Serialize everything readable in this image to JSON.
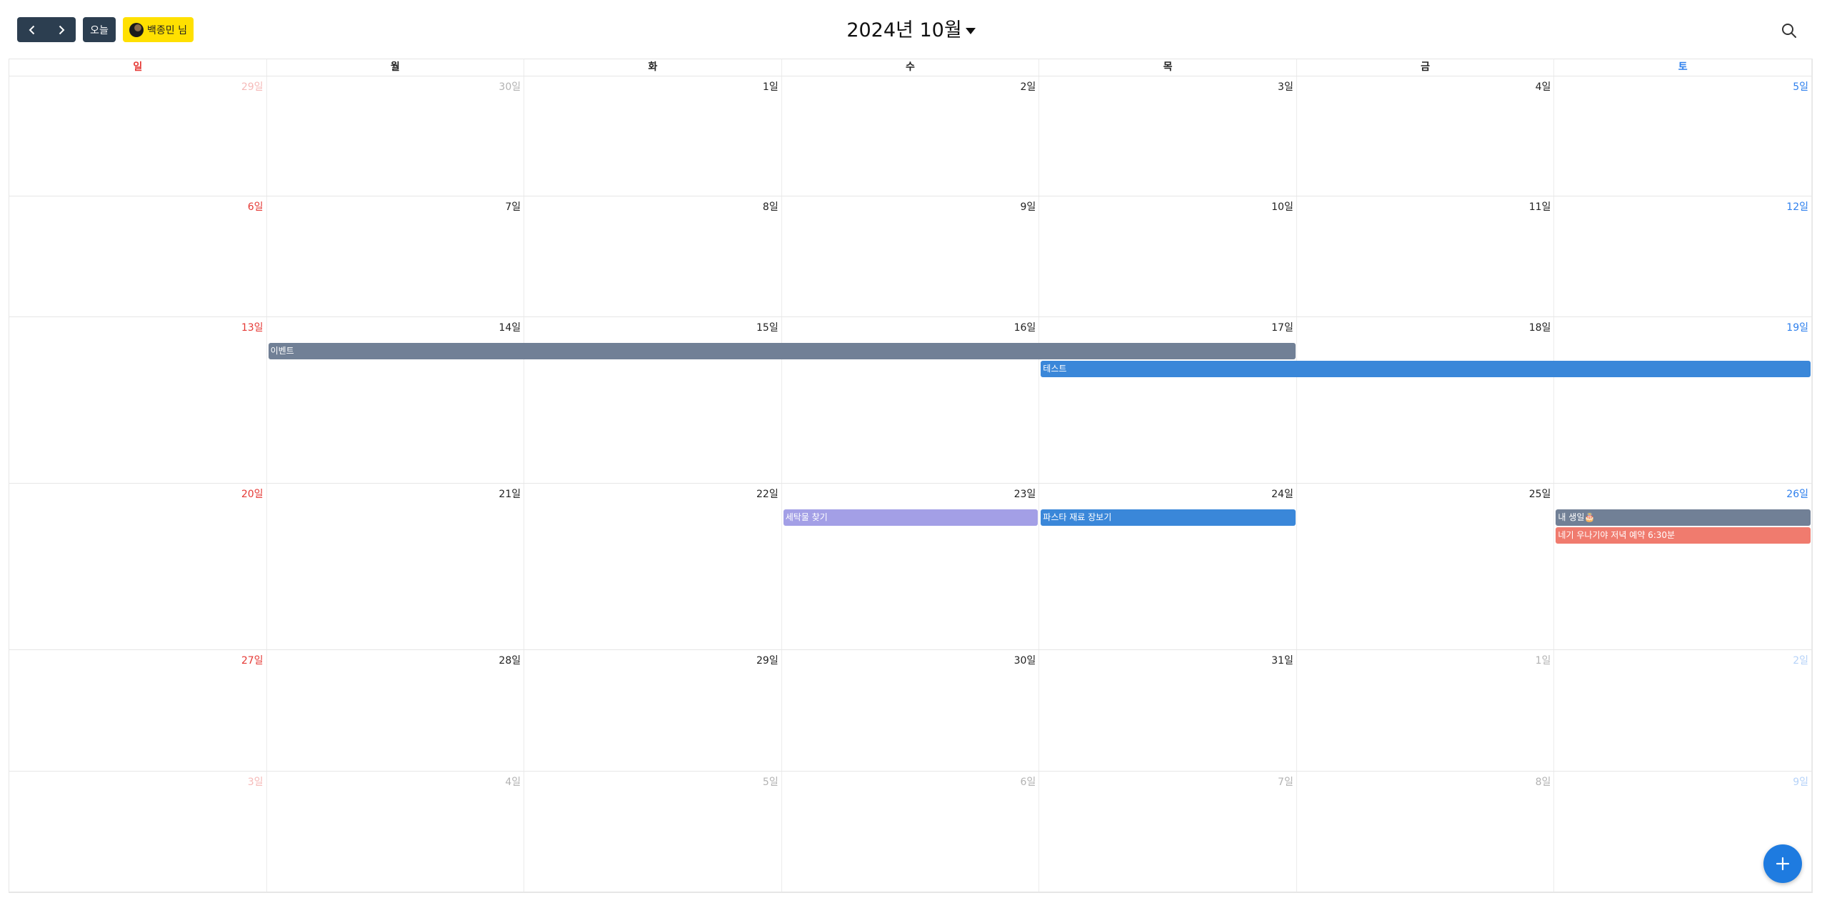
{
  "toolbar": {
    "today_label": "오늘",
    "user_label": "백종민 님",
    "month_title": "2024년 10월",
    "prev_icon": "chevron-left-icon",
    "next_icon": "chevron-right-icon",
    "search_icon": "search-icon"
  },
  "colors": {
    "sunday": "#e53935",
    "saturday": "#2f80ed",
    "nav_bg": "#2c3e50",
    "user_chip": "#ffe000",
    "fab": "#1e7be0"
  },
  "weekdays": [
    "일",
    "월",
    "화",
    "수",
    "목",
    "금",
    "토"
  ],
  "weeks": [
    [
      {
        "label": "29일",
        "other": true
      },
      {
        "label": "30일",
        "other": true
      },
      {
        "label": "1일"
      },
      {
        "label": "2일"
      },
      {
        "label": "3일"
      },
      {
        "label": "4일"
      },
      {
        "label": "5일"
      }
    ],
    [
      {
        "label": "6일"
      },
      {
        "label": "7일"
      },
      {
        "label": "8일"
      },
      {
        "label": "9일"
      },
      {
        "label": "10일"
      },
      {
        "label": "11일"
      },
      {
        "label": "12일"
      }
    ],
    [
      {
        "label": "13일"
      },
      {
        "label": "14일"
      },
      {
        "label": "15일"
      },
      {
        "label": "16일"
      },
      {
        "label": "17일"
      },
      {
        "label": "18일"
      },
      {
        "label": "19일"
      }
    ],
    [
      {
        "label": "20일"
      },
      {
        "label": "21일"
      },
      {
        "label": "22일"
      },
      {
        "label": "23일"
      },
      {
        "label": "24일"
      },
      {
        "label": "25일"
      },
      {
        "label": "26일"
      }
    ],
    [
      {
        "label": "27일"
      },
      {
        "label": "28일"
      },
      {
        "label": "29일"
      },
      {
        "label": "30일"
      },
      {
        "label": "31일"
      },
      {
        "label": "1일",
        "other": true
      },
      {
        "label": "2일",
        "other": true
      }
    ],
    [
      {
        "label": "3일",
        "other": true
      },
      {
        "label": "4일",
        "other": true
      },
      {
        "label": "5일",
        "other": true
      },
      {
        "label": "6일",
        "other": true
      },
      {
        "label": "7일",
        "other": true
      },
      {
        "label": "8일",
        "other": true
      },
      {
        "label": "9일",
        "other": true
      }
    ]
  ],
  "events": [
    {
      "title": "이벤트",
      "week": 2,
      "start_day": 1,
      "end_day": 4,
      "slot": 0,
      "color": "#718096"
    },
    {
      "title": "테스트",
      "week": 2,
      "start_day": 4,
      "end_day": 6,
      "slot": 1,
      "color": "#3a87d9"
    },
    {
      "title": "세탁물 찾기",
      "week": 3,
      "start_day": 3,
      "end_day": 3,
      "slot": 0,
      "color": "#a39fe6"
    },
    {
      "title": "파스타 재료 장보기",
      "week": 3,
      "start_day": 4,
      "end_day": 4,
      "slot": 0,
      "color": "#3a87d9"
    },
    {
      "title": "내 생일🎂",
      "week": 3,
      "start_day": 6,
      "end_day": 6,
      "slot": 0,
      "color": "#718096"
    },
    {
      "title": "네기 우나기야 저녁 예약 6:30분",
      "week": 3,
      "start_day": 6,
      "end_day": 6,
      "slot": 1,
      "color": "#f07b6e"
    }
  ],
  "fab": {
    "icon": "plus-icon"
  }
}
